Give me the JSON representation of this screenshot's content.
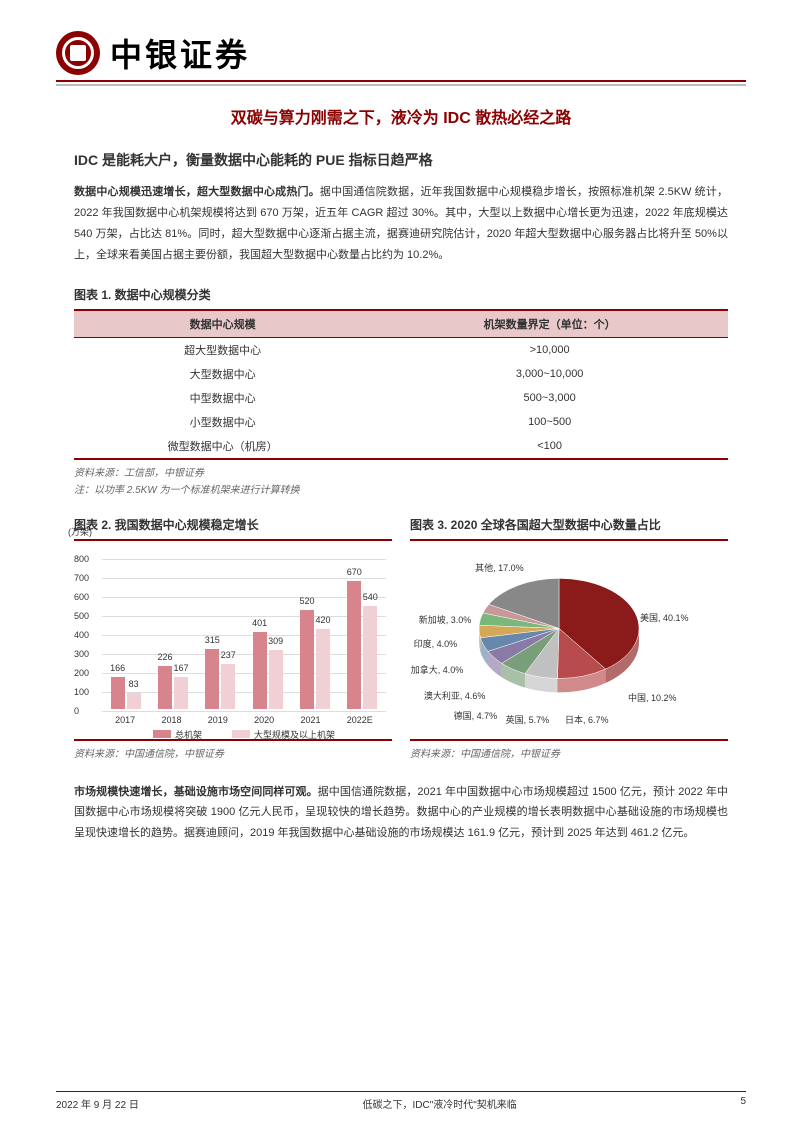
{
  "brand": "中银证券",
  "title": "双碳与算力刚需之下，液冷为 IDC 散热必经之路",
  "section1_title": "IDC 是能耗大户，衡量数据中心能耗的 PUE 指标日趋严格",
  "para1_bold": "数据中心规模迅速增长，超大型数据中心成热门。",
  "para1": "据中国通信院数据，近年我国数据中心规模稳步增长，按照标准机架 2.5KW 统计，2022 年我国数据中心机架规模将达到 670 万架，近五年 CAGR 超过 30%。其中，大型以上数据中心增长更为迅速，2022 年底规模达 540 万架，占比达 81%。同时，超大型数据中心逐渐占据主流，据赛迪研究院估计，2020 年超大型数据中心服务器占比将升至 50%以上，全球来看美国占据主要份额，我国超大型数据中心数量占比约为 10.2%。",
  "fig1_title": "图表 1. 数据中心规模分类",
  "table1": {
    "headers": [
      "数据中心规模",
      "机架数量界定（单位：个）"
    ],
    "rows": [
      [
        "超大型数据中心",
        ">10,000"
      ],
      [
        "大型数据中心",
        "3,000~10,000"
      ],
      [
        "中型数据中心",
        "500~3,000"
      ],
      [
        "小型数据中心",
        "100~500"
      ],
      [
        "微型数据中心（机房）",
        "<100"
      ]
    ]
  },
  "fig1_source": "资料来源：工信部，中银证券",
  "fig1_note": "注：以功率 2.5KW 为一个标准机架来进行计算转换",
  "fig2_title": "图表 2. 我国数据中心规模稳定增长",
  "fig2_source": "资料来源：中国通信院，中银证券",
  "fig3_title": "图表 3. 2020 全球各国超大型数据中心数量占比",
  "fig3_source": "资料来源：中国通信院，中银证券",
  "bar_chart": {
    "ylabel": "(万架)",
    "ymax": 800,
    "ytick_step": 100,
    "categories": [
      "2017",
      "2018",
      "2019",
      "2020",
      "2021",
      "2022E"
    ],
    "series": [
      {
        "name": "总机架",
        "color": "#d8848c",
        "values": [
          166,
          226,
          315,
          401,
          520,
          670
        ]
      },
      {
        "name": "大型规模及以上机架",
        "color": "#f0d0d4",
        "values": [
          83,
          167,
          237,
          309,
          420,
          540
        ]
      }
    ],
    "grid_color": "#dddddd"
  },
  "pie_chart": {
    "slices": [
      {
        "label": "美国, 40.1%",
        "value": 40.1,
        "color": "#8b1a1a"
      },
      {
        "label": "中国, 10.2%",
        "value": 10.2,
        "color": "#b84c4c"
      },
      {
        "label": "日本, 6.7%",
        "value": 6.7,
        "color": "#c0c0c0"
      },
      {
        "label": "英国, 5.7%",
        "value": 5.7,
        "color": "#7a9e7a"
      },
      {
        "label": "德国, 4.7%",
        "value": 4.7,
        "color": "#8a7aa8"
      },
      {
        "label": "澳大利亚, 4.6%",
        "value": 4.6,
        "color": "#6688aa"
      },
      {
        "label": "加拿大, 4.0%",
        "value": 4.0,
        "color": "#d4a856"
      },
      {
        "label": "印度, 4.0%",
        "value": 4.0,
        "color": "#7ab87a"
      },
      {
        "label": "新加坡, 3.0%",
        "value": 3.0,
        "color": "#c89898"
      },
      {
        "label": "其他, 17.0%",
        "value": 17.0,
        "color": "#888888"
      }
    ]
  },
  "para2_bold": "市场规模快速增长，基础设施市场空间同样可观。",
  "para2": "据中国信通院数据，2021 年中国数据中心市场规模超过 1500 亿元，预计 2022 年中国数据中心市场规模将突破 1900 亿元人民币，呈现较快的增长趋势。数据中心的产业规模的增长表明数据中心基础设施的市场规模也呈现快速增长的趋势。据赛迪顾问，2019 年我国数据中心基础设施的市场规模达 161.9 亿元，预计到 2025 年达到 461.2 亿元。",
  "footer": {
    "date": "2022 年 9 月 22 日",
    "center": "低碳之下，IDC\"液冷时代\"契机来临",
    "page": "5"
  }
}
